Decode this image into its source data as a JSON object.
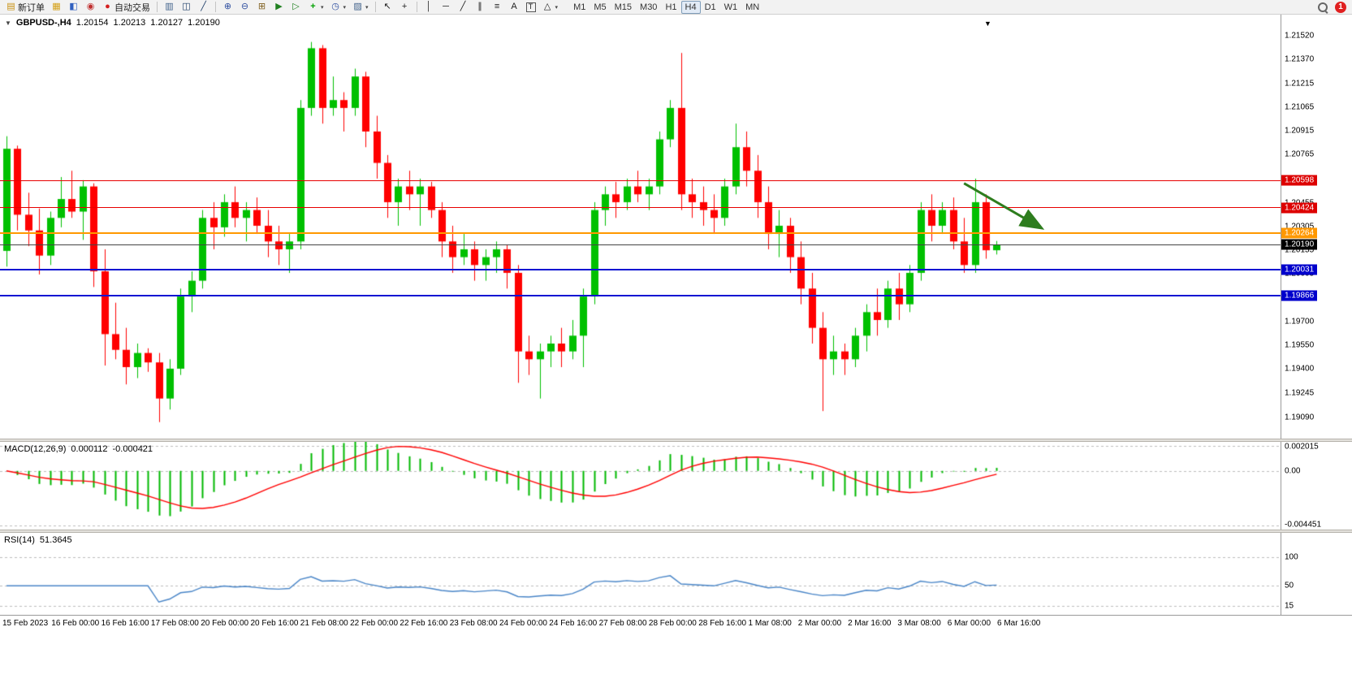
{
  "toolbar": {
    "items": [
      {
        "type": "button",
        "name": "new-order-button",
        "icon": "new-order-icon",
        "label": "新订单"
      },
      {
        "type": "button",
        "name": "charts-window-button",
        "icon": "chart-window-icon"
      },
      {
        "type": "button",
        "name": "market-watch-button",
        "icon": "market-watch-icon"
      },
      {
        "type": "button",
        "name": "data-window-button",
        "icon": "data-window-icon"
      },
      {
        "type": "button",
        "name": "autotrading-button",
        "icon": "autotrading-icon",
        "label": "自动交易"
      },
      {
        "type": "sep"
      },
      {
        "type": "button",
        "name": "bar-chart-button",
        "icon": "bar-chart-icon"
      },
      {
        "type": "button",
        "name": "candlestick-chart-button",
        "icon": "candlestick-chart-icon"
      },
      {
        "type": "button",
        "name": "line-chart-button",
        "icon": "line-chart-icon"
      },
      {
        "type": "sep"
      },
      {
        "type": "button",
        "name": "zoom-in-button",
        "icon": "zoom-in-icon"
      },
      {
        "type": "button",
        "name": "zoom-out-button",
        "icon": "zoom-out-icon"
      },
      {
        "type": "button",
        "name": "tile-windows-button",
        "icon": "tile-windows-icon"
      },
      {
        "type": "button",
        "name": "auto-scroll-button",
        "icon": "auto-scroll-icon"
      },
      {
        "type": "button",
        "name": "chart-shift-button",
        "icon": "chart-shift-icon"
      },
      {
        "type": "button",
        "name": "indicators-button",
        "icon": "indicators-icon",
        "caret": true
      },
      {
        "type": "button",
        "name": "periods-button",
        "icon": "clock-icon",
        "caret": true
      },
      {
        "type": "button",
        "name": "templates-button",
        "icon": "template-icon",
        "caret": true
      },
      {
        "type": "sep"
      },
      {
        "type": "button",
        "name": "cursor-button",
        "icon": "cursor-icon"
      },
      {
        "type": "button",
        "name": "crosshair-button",
        "icon": "crosshair-icon"
      },
      {
        "type": "sep"
      },
      {
        "type": "button",
        "name": "vertical-line-button",
        "icon": "vertical-line-icon"
      },
      {
        "type": "button",
        "name": "horizontal-line-button",
        "icon": "horizontal-line-icon"
      },
      {
        "type": "button",
        "name": "trendline-button",
        "icon": "trendline-icon"
      },
      {
        "type": "button",
        "name": "channel-button",
        "icon": "channel-icon"
      },
      {
        "type": "button",
        "name": "fibonacci-button",
        "icon": "fibonacci-icon"
      },
      {
        "type": "button",
        "name": "text-button",
        "icon": "text-icon"
      },
      {
        "type": "button",
        "name": "label-button",
        "icon": "label-icon"
      },
      {
        "type": "button",
        "name": "shapes-button",
        "icon": "shapes-icon",
        "caret": true
      }
    ],
    "timeframes": [
      "M1",
      "M5",
      "M15",
      "M30",
      "H1",
      "H4",
      "D1",
      "W1",
      "MN"
    ],
    "active_timeframe": "H4",
    "notification_count": "1"
  },
  "chart_header": {
    "symbol": "GBPUSD-,H4",
    "open": "1.20154",
    "high": "1.20213",
    "low": "1.20127",
    "close": "1.20190"
  },
  "colors": {
    "bull": "#00c000",
    "bear": "#ff0000",
    "macd_histogram": "#00b800",
    "macd_signal": "#ff0000",
    "rsi_line": "#4a86c8",
    "level_red": "#e80000",
    "level_orange": "#ff9800",
    "level_blue": "#0a14d2",
    "current_price_line": "#444444",
    "badge_red": "#dd0000",
    "badge_orange": "#ff9800",
    "badge_blue": "#0000cc",
    "badge_black": "#000000",
    "arrow_green": "#2e7d1e",
    "dashed_level": "#bdbdbd"
  },
  "chart_data": {
    "type": "candlestick",
    "symbol": "GBPUSD-",
    "timeframe": "H4",
    "y_axis": {
      "labels": [
        "1.21520",
        "1.21370",
        "1.21215",
        "1.21065",
        "1.20915",
        "1.20765",
        "1.20455",
        "1.20305",
        "1.20155",
        "1.20005",
        "1.19700",
        "1.19550",
        "1.19400",
        "1.19245",
        "1.19090"
      ],
      "visible_min": 1.18955,
      "visible_max": 1.21654
    },
    "x_labels": [
      "15 Feb 2023",
      "16 Feb 00:00",
      "16 Feb 16:00",
      "17 Feb 08:00",
      "20 Feb 00:00",
      "20 Feb 16:00",
      "21 Feb 08:00",
      "22 Feb 00:00",
      "22 Feb 16:00",
      "23 Feb 08:00",
      "24 Feb 00:00",
      "24 Feb 16:00",
      "27 Feb 08:00",
      "28 Feb 00:00",
      "28 Feb 16:00",
      "1 Mar 08:00",
      "2 Mar 00:00",
      "2 Mar 16:00",
      "3 Mar 08:00",
      "6 Mar 00:00",
      "6 Mar 16:00"
    ],
    "candles": [
      [
        1.2015,
        1.2088,
        1.2005,
        1.208
      ],
      [
        1.208,
        1.2082,
        1.2028,
        1.2038
      ],
      [
        1.2038,
        1.2052,
        1.2018,
        1.2028
      ],
      [
        1.2028,
        1.2042,
        1.2,
        1.2012
      ],
      [
        1.2012,
        1.204,
        1.2006,
        1.2036
      ],
      [
        1.2036,
        1.2062,
        1.203,
        1.2048
      ],
      [
        1.2048,
        1.2066,
        1.2036,
        1.204
      ],
      [
        1.204,
        1.206,
        1.2022,
        1.2056
      ],
      [
        1.2056,
        1.2058,
        1.1992,
        1.2002
      ],
      [
        1.2002,
        1.2016,
        1.1942,
        1.1962
      ],
      [
        1.1962,
        1.1982,
        1.1946,
        1.1952
      ],
      [
        1.1952,
        1.1966,
        1.193,
        1.1941
      ],
      [
        1.1941,
        1.1956,
        1.1934,
        1.195
      ],
      [
        1.195,
        1.1953,
        1.1938,
        1.1944
      ],
      [
        1.1944,
        1.195,
        1.1906,
        1.1921
      ],
      [
        1.1921,
        1.1946,
        1.1914,
        1.194
      ],
      [
        1.194,
        1.1991,
        1.1936,
        1.1986
      ],
      [
        1.1986,
        1.2002,
        1.1976,
        1.1996
      ],
      [
        1.1996,
        1.2041,
        1.1991,
        1.2036
      ],
      [
        1.2036,
        1.2046,
        1.2016,
        1.203
      ],
      [
        1.203,
        1.2051,
        1.2024,
        1.2046
      ],
      [
        1.2046,
        1.2056,
        1.203,
        1.2036
      ],
      [
        1.2036,
        1.2046,
        1.2021,
        1.2041
      ],
      [
        1.2041,
        1.2049,
        1.2026,
        1.2031
      ],
      [
        1.2031,
        1.2041,
        1.2011,
        1.2021
      ],
      [
        1.2021,
        1.2031,
        1.2006,
        1.2016
      ],
      [
        1.2016,
        1.2026,
        1.2001,
        1.2021
      ],
      [
        1.2021,
        1.2111,
        1.2016,
        1.2106
      ],
      [
        1.2106,
        1.2148,
        1.2101,
        1.2144
      ],
      [
        1.2144,
        1.2146,
        1.2096,
        1.2106
      ],
      [
        1.2106,
        1.2126,
        1.2101,
        1.2111
      ],
      [
        1.2111,
        1.2116,
        1.2091,
        1.2106
      ],
      [
        1.2106,
        1.2131,
        1.2101,
        1.2126
      ],
      [
        1.2126,
        1.2129,
        1.2081,
        1.2091
      ],
      [
        1.2091,
        1.2101,
        1.2061,
        1.2071
      ],
      [
        1.2071,
        1.2076,
        1.2036,
        1.2046
      ],
      [
        1.2046,
        1.2061,
        1.2031,
        1.2056
      ],
      [
        1.2056,
        1.2066,
        1.2041,
        1.2051
      ],
      [
        1.2051,
        1.2061,
        1.2031,
        1.2056
      ],
      [
        1.2056,
        1.2059,
        1.2036,
        1.2041
      ],
      [
        1.2041,
        1.2046,
        1.2011,
        1.2021
      ],
      [
        1.2021,
        1.2031,
        1.2001,
        1.2011
      ],
      [
        1.2011,
        1.2026,
        1.2006,
        1.2016
      ],
      [
        1.2016,
        1.2021,
        1.1996,
        1.2006
      ],
      [
        1.2006,
        1.2016,
        1.1996,
        1.2011
      ],
      [
        1.2011,
        1.2021,
        1.2001,
        1.2016
      ],
      [
        1.2016,
        1.2019,
        1.1991,
        1.2001
      ],
      [
        1.2001,
        1.2006,
        1.1931,
        1.1951
      ],
      [
        1.1951,
        1.1961,
        1.1936,
        1.1946
      ],
      [
        1.1946,
        1.1956,
        1.1921,
        1.1951
      ],
      [
        1.1951,
        1.1961,
        1.1941,
        1.1956
      ],
      [
        1.1956,
        1.1966,
        1.1941,
        1.1951
      ],
      [
        1.1951,
        1.1971,
        1.1946,
        1.1961
      ],
      [
        1.1961,
        1.1991,
        1.1941,
        1.1986
      ],
      [
        1.1986,
        1.2046,
        1.1981,
        1.2041
      ],
      [
        1.2041,
        1.2056,
        1.2031,
        1.2051
      ],
      [
        1.2051,
        1.2059,
        1.2036,
        1.2046
      ],
      [
        1.2046,
        1.2061,
        1.2041,
        1.2056
      ],
      [
        1.2056,
        1.2066,
        1.2046,
        1.2051
      ],
      [
        1.2051,
        1.2061,
        1.2041,
        1.2056
      ],
      [
        1.2056,
        1.2091,
        1.2051,
        1.2086
      ],
      [
        1.2086,
        1.2111,
        1.2081,
        1.2106
      ],
      [
        1.2106,
        1.2141,
        1.2041,
        1.2051
      ],
      [
        1.2051,
        1.2061,
        1.2036,
        1.2046
      ],
      [
        1.2046,
        1.2056,
        1.2031,
        1.2041
      ],
      [
        1.2041,
        1.2051,
        1.2026,
        1.2036
      ],
      [
        1.2036,
        1.2061,
        1.2031,
        1.2056
      ],
      [
        1.2056,
        1.2096,
        1.2051,
        1.2081
      ],
      [
        1.2081,
        1.2091,
        1.2056,
        1.2066
      ],
      [
        1.2066,
        1.2076,
        1.2036,
        1.2046
      ],
      [
        1.2046,
        1.2056,
        1.2016,
        1.2026
      ],
      [
        1.2026,
        1.2041,
        1.2011,
        1.2031
      ],
      [
        1.2031,
        1.2036,
        1.2001,
        1.2011
      ],
      [
        1.2011,
        1.2021,
        1.1981,
        1.1991
      ],
      [
        1.1991,
        1.2001,
        1.1956,
        1.1966
      ],
      [
        1.1966,
        1.1976,
        1.1913,
        1.1946
      ],
      [
        1.1946,
        1.1961,
        1.1936,
        1.1951
      ],
      [
        1.1951,
        1.1956,
        1.1936,
        1.1946
      ],
      [
        1.1946,
        1.1966,
        1.1941,
        1.1961
      ],
      [
        1.1961,
        1.1981,
        1.1951,
        1.1976
      ],
      [
        1.1976,
        1.1991,
        1.1961,
        1.1971
      ],
      [
        1.1971,
        1.1996,
        1.1966,
        1.1991
      ],
      [
        1.1991,
        1.2001,
        1.1971,
        1.1981
      ],
      [
        1.1981,
        1.2006,
        1.1976,
        1.2001
      ],
      [
        1.2001,
        1.2046,
        1.1996,
        1.2041
      ],
      [
        1.2041,
        1.2051,
        1.2021,
        1.2031
      ],
      [
        1.2031,
        1.2046,
        1.2026,
        1.2041
      ],
      [
        1.2041,
        1.2049,
        1.2016,
        1.2021
      ],
      [
        1.2021,
        1.2036,
        1.2001,
        1.2006
      ],
      [
        1.2006,
        1.2061,
        1.2001,
        1.2046
      ],
      [
        1.2046,
        1.2051,
        1.201,
        1.20154
      ],
      [
        1.20154,
        1.20213,
        1.20127,
        1.2019
      ]
    ],
    "overlays": {
      "levels": [
        {
          "price": 1.20598,
          "label": "1.20598",
          "color": "red",
          "thickness": 1
        },
        {
          "price": 1.20424,
          "label": "1.20424",
          "color": "red",
          "thickness": 1
        },
        {
          "price": 1.20264,
          "label": "1.20264",
          "color": "orange",
          "thickness": 2
        },
        {
          "price": 1.20031,
          "label": "1.20031",
          "color": "blue",
          "thickness": 2
        },
        {
          "price": 1.19866,
          "label": "1.19866",
          "color": "blue",
          "thickness": 2
        }
      ],
      "current_price": {
        "price": 1.2019,
        "label": "1.20190"
      },
      "trend_arrow": {
        "direction": "down-right",
        "from": {
          "bar": 88,
          "price": 1.2058
        },
        "to": {
          "bar": 95,
          "price": 1.203
        }
      }
    },
    "indicators": [
      {
        "type": "MACD",
        "label": "MACD(12,26,9)",
        "fast": 12,
        "slow": 26,
        "signal": 9,
        "value": "0.000112",
        "signal_value": "-0.000421",
        "y_labels": [
          "0.002015",
          "0.00",
          "-0.004451"
        ],
        "y_max": 0.00235,
        "y_min": -0.00475
      },
      {
        "type": "RSI",
        "label": "RSI(14)",
        "period": 14,
        "value": "51.3645",
        "y_labels": [
          "100",
          "50",
          "15"
        ]
      }
    ]
  }
}
